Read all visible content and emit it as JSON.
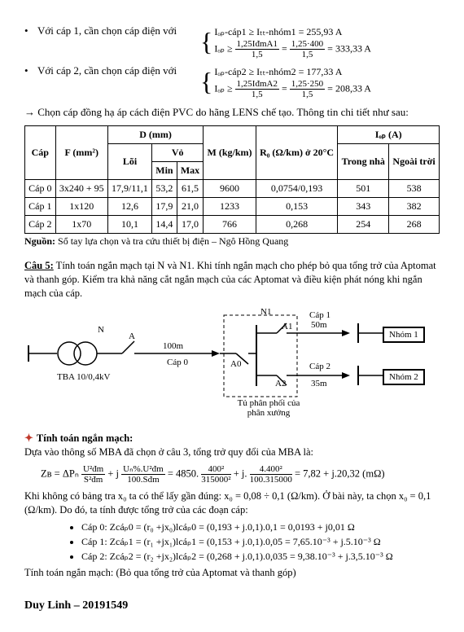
{
  "top": {
    "bullet1_text": "Với cáp 1, cần chọn cáp điện với",
    "b1_l1": "Iₒₚ-cáp1 ≥ Iₜₜ-nhóm1 = 255,93 A",
    "b1_frac_left_label": "Iₒₚ ≥",
    "b1_frac1_num": "1,25IđmA1",
    "b1_frac1_den": "1,5",
    "b1_eq": " = ",
    "b1_frac2_num": "1,25·400",
    "b1_frac2_den": "1,5",
    "b1_res": " = 333,33 A",
    "bullet2_text": "Với cáp 2, cần chọn cáp điện với",
    "b2_l1": "Iₒₚ-cáp2 ≥ Iₜₜ-nhóm2 = 177,33 A",
    "b2_frac1_num": "1,25IđmA2",
    "b2_frac1_den": "1,5",
    "b2_frac2_num": "1,25·250",
    "b2_frac2_den": "1,5",
    "b2_res": " = 208,33 A",
    "arrow_line": "→ Chọn cáp đồng hạ áp cách điện PVC do hãng LENS chế tạo. Thông tin chi tiết như sau:"
  },
  "table": {
    "h_cap": "Cáp",
    "h_F": "F (mm²)",
    "h_D": "D (mm)",
    "h_loi": "Lõi",
    "h_vo": "Vỏ",
    "h_min": "Min",
    "h_max": "Max",
    "h_M": "M (kg/km)",
    "h_R0": "R₀ (Ω/km) ở 20°C",
    "h_Icp": "Iₒₚ (A)",
    "h_trong": "Trong nhà",
    "h_ngoai": "Ngoài trời",
    "rows": [
      {
        "cap": "Cáp 0",
        "F": "3x240 + 95",
        "loi": "17,9/11,1",
        "min": "53,2",
        "max": "61,5",
        "M": "9600",
        "R0": "0,0754/0,193",
        "tn": "501",
        "nt": "538"
      },
      {
        "cap": "Cáp 1",
        "F": "1x120",
        "loi": "12,6",
        "min": "17,9",
        "max": "21,0",
        "M": "1233",
        "R0": "0,153",
        "tn": "343",
        "nt": "382"
      },
      {
        "cap": "Cáp 2",
        "F": "1x70",
        "loi": "10,1",
        "min": "14,4",
        "max": "17,0",
        "M": "766",
        "R0": "0,268",
        "tn": "254",
        "nt": "268"
      }
    ],
    "source_label": "Nguồn:",
    "source_text": " Sổ tay lựa chọn và tra cứu thiết bị điện – Ngô Hồng Quang"
  },
  "q5": {
    "head": "Câu 5:",
    "text": " Tính toán ngắn mạch tại N và N1. Khi tính ngắn mạch cho phép bỏ qua tổng trở của Aptomat và thanh góp. Kiểm tra khả năng cắt ngắn mạch của các Aptomat và điều kiện phát nóng khi ngắn mạch của cáp."
  },
  "diagram": {
    "N": "N",
    "N1": "N1",
    "A": "A",
    "A0": "A0",
    "A1": "A1",
    "A2": "A2",
    "tba": "TBA 10/0,4kV",
    "len100": "100m",
    "cap0": "Cáp 0",
    "cap1": "Cáp 1",
    "cap1len": "50m",
    "cap2": "Cáp 2",
    "cap2len": "35m",
    "nhom1": "Nhóm 1",
    "nhom2": "Nhóm 2",
    "box_caption": "Tủ phân phối của phân xưởng"
  },
  "calc": {
    "head": "Tính toán ngắn mạch:",
    "intro": "Dựa vào thông số MBA đã chọn ở câu 3, tổng trở quy đổi của MBA là:",
    "ZB_left": "Zʙ = ΔPₙ",
    "f1_num": "U²đm",
    "f1_den": "S²đm",
    "plusj": " + j",
    "f2_num": "Uₙ%.U²đm",
    "f2_den": "100.Sđm",
    "eq4850": " = 4850.",
    "f3_num": "400²",
    "f3_den": "315000²",
    "plusj2": " + j.",
    "f4_num": "4.400²",
    "f4_den": "100.315000",
    "result": " = 7,82 + j.20,32 (mΩ)",
    "line2": "Khi không có bảng tra x₀ ta có thể lấy gần đúng: x₀ = 0,08 ÷ 0,1 (Ω/km). Ở bài này, ta chọn x₀ = 0,1 (Ω/km). Do đó, ta tính được tổng trở của các đoạn cáp:",
    "items": [
      "Cáp 0: Zсáₚ0 = (r₀ +jx₀)lсáₚ0 = (0,193 + j.0,1).0,1 = 0,0193 + j0,01 Ω",
      "Cáp 1: Zсáₚ1 = (r₁ +jx₁)lсáₚ1 = (0,153 + j.0,1).0,05 = 7,65.10⁻³ + j.5.10⁻³ Ω",
      "Cáp 2: Zсáₚ2 = (r₂ +jx₂)lсáₚ2 = (0,268 + j.0,1).0,035 = 9,38.10⁻³ + j.3,5.10⁻³ Ω"
    ],
    "tail": "Tính toán ngắn mạch: (Bỏ qua tổng trở của Aptomat và thanh góp)"
  },
  "footer": "Duy Linh – 20191549"
}
